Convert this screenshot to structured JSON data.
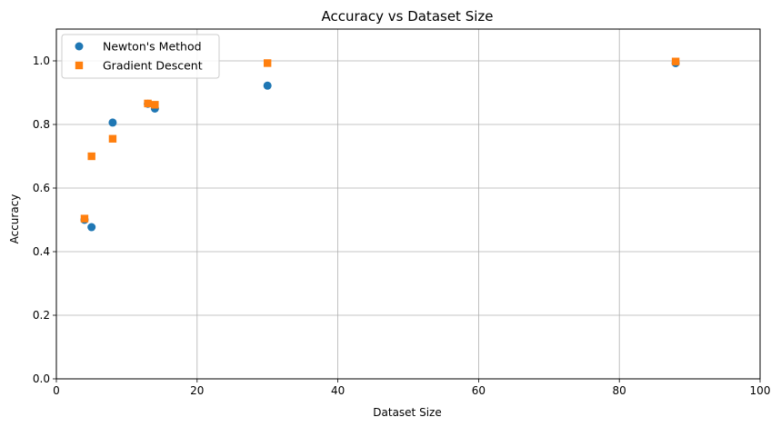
{
  "chart_data": {
    "type": "scatter",
    "title": "Accuracy vs Dataset Size",
    "xlabel": "Dataset Size",
    "ylabel": "Accuracy",
    "xlim": [
      0,
      100
    ],
    "ylim": [
      0,
      1.1
    ],
    "xticks": [
      0,
      20,
      40,
      60,
      80,
      100
    ],
    "yticks": [
      0.0,
      0.2,
      0.4,
      0.6,
      0.8,
      1.0
    ],
    "xtick_labels": [
      "0",
      "20",
      "40",
      "60",
      "80",
      "100"
    ],
    "ytick_labels": [
      "0.0",
      "0.2",
      "0.4",
      "0.6",
      "0.8",
      "1.0"
    ],
    "grid": true,
    "legend_position": "top-left",
    "series": [
      {
        "name": "Newton's Method",
        "marker": "circle",
        "color": "#1f77b4",
        "points": [
          {
            "x": 4,
            "y": 0.5
          },
          {
            "x": 5,
            "y": 0.477
          },
          {
            "x": 8,
            "y": 0.806
          },
          {
            "x": 13,
            "y": 0.865
          },
          {
            "x": 14,
            "y": 0.85
          },
          {
            "x": 30,
            "y": 0.922
          },
          {
            "x": 88,
            "y": 0.993
          }
        ]
      },
      {
        "name": "Gradient Descent",
        "marker": "square",
        "color": "#ff7f0e",
        "points": [
          {
            "x": 4,
            "y": 0.504
          },
          {
            "x": 5,
            "y": 0.7
          },
          {
            "x": 8,
            "y": 0.755
          },
          {
            "x": 13,
            "y": 0.866
          },
          {
            "x": 14,
            "y": 0.862
          },
          {
            "x": 30,
            "y": 0.993
          },
          {
            "x": 88,
            "y": 0.998
          }
        ]
      }
    ]
  }
}
